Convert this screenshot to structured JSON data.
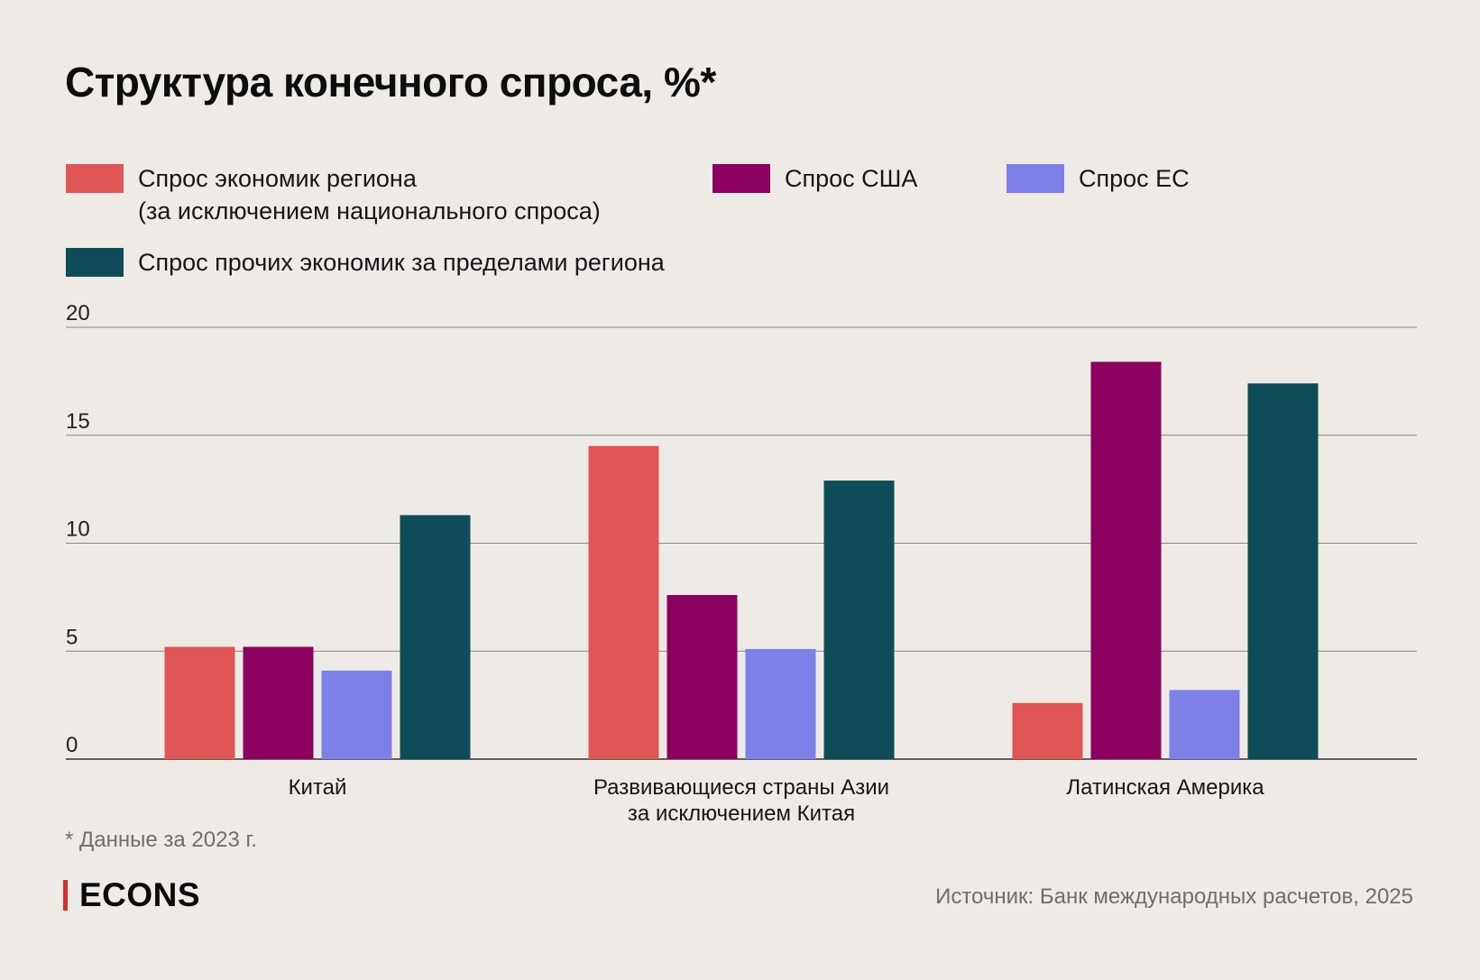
{
  "title": "Структура конечного спроса, %*",
  "footnote": "* Данные за 2023 г.",
  "source": "Источник: Банк международных расчетов, 2025",
  "brand": {
    "name": "ECONS",
    "accent_color": "#d92d2d"
  },
  "legend": [
    {
      "label": "Спрос экономик региона\n(за исключением национального спроса)",
      "color": "#e05555"
    },
    {
      "label": "Спрос США",
      "color": "#8c0060"
    },
    {
      "label": "Спрос ЕС",
      "color": "#7d80e6"
    },
    {
      "label": "Спрос прочих экономик за пределами региона",
      "color": "#0f4c59"
    }
  ],
  "chart_data": {
    "type": "bar",
    "title": "Структура конечного спроса, %*",
    "categories": [
      "Китай",
      "Развивающиеся страны Азии\nза исключением Китая",
      "Латинская Америка"
    ],
    "series": [
      {
        "name": "Спрос экономик региона (за исключением национального спроса)",
        "color": "#e05555",
        "values": [
          5.2,
          14.5,
          2.6
        ]
      },
      {
        "name": "Спрос США",
        "color": "#8c0060",
        "values": [
          5.2,
          7.6,
          18.4
        ]
      },
      {
        "name": "Спрос ЕС",
        "color": "#7d80e6",
        "values": [
          4.1,
          5.1,
          3.2
        ]
      },
      {
        "name": "Спрос прочих экономик за пределами региона",
        "color": "#0f4c59",
        "values": [
          11.3,
          12.9,
          17.4
        ]
      }
    ],
    "yticks": [
      0,
      5,
      10,
      15,
      20
    ],
    "ylim": [
      0,
      20
    ],
    "grid": true,
    "legend_position": "top"
  }
}
